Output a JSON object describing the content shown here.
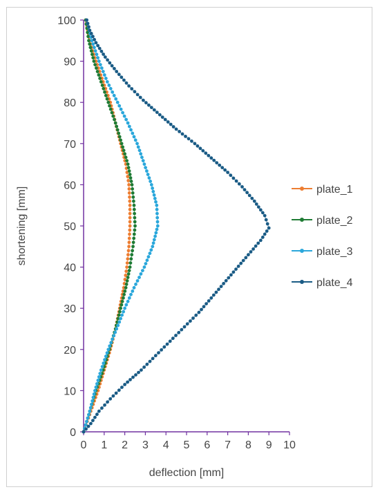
{
  "chart_data": {
    "type": "scatter",
    "xlabel": "deflection [mm]",
    "ylabel": "shortening [mm]",
    "xlim": [
      0,
      10
    ],
    "ylim": [
      0,
      100
    ],
    "xticks": [
      "0",
      "1",
      "2",
      "3",
      "4",
      "5",
      "6",
      "7",
      "8",
      "9",
      "10"
    ],
    "yticks": [
      "0",
      "10",
      "20",
      "30",
      "40",
      "50",
      "60",
      "70",
      "80",
      "90",
      "100"
    ],
    "grid": false,
    "legend_position": "right",
    "axis_color": "#7030A0",
    "series": [
      {
        "name": "plate_1",
        "color": "#ED7D31",
        "points": [
          [
            0,
            0
          ],
          [
            0.35,
            5
          ],
          [
            0.7,
            10
          ],
          [
            1.0,
            15
          ],
          [
            1.3,
            20
          ],
          [
            1.55,
            25
          ],
          [
            1.75,
            30
          ],
          [
            1.95,
            35
          ],
          [
            2.1,
            40
          ],
          [
            2.2,
            45
          ],
          [
            2.25,
            50
          ],
          [
            2.25,
            55
          ],
          [
            2.2,
            60
          ],
          [
            2.05,
            65
          ],
          [
            1.8,
            70
          ],
          [
            1.55,
            75
          ],
          [
            1.3,
            80
          ],
          [
            0.95,
            85
          ],
          [
            0.6,
            90
          ],
          [
            0.3,
            95
          ],
          [
            0.1,
            100
          ]
        ]
      },
      {
        "name": "plate_2",
        "color": "#1E7B34",
        "points": [
          [
            0,
            0
          ],
          [
            0.3,
            5
          ],
          [
            0.6,
            10
          ],
          [
            0.95,
            15
          ],
          [
            1.25,
            20
          ],
          [
            1.55,
            25
          ],
          [
            1.8,
            30
          ],
          [
            2.05,
            35
          ],
          [
            2.25,
            40
          ],
          [
            2.4,
            45
          ],
          [
            2.5,
            50
          ],
          [
            2.45,
            55
          ],
          [
            2.35,
            60
          ],
          [
            2.15,
            65
          ],
          [
            1.85,
            70
          ],
          [
            1.55,
            75
          ],
          [
            1.2,
            80
          ],
          [
            0.85,
            85
          ],
          [
            0.5,
            90
          ],
          [
            0.25,
            95
          ],
          [
            0.1,
            100
          ]
        ]
      },
      {
        "name": "plate_3",
        "color": "#2AA7DB",
        "points": [
          [
            0,
            0
          ],
          [
            0.3,
            5
          ],
          [
            0.55,
            10
          ],
          [
            0.85,
            15
          ],
          [
            1.2,
            20
          ],
          [
            1.6,
            25
          ],
          [
            2.0,
            30
          ],
          [
            2.45,
            35
          ],
          [
            2.95,
            40
          ],
          [
            3.35,
            45
          ],
          [
            3.6,
            50
          ],
          [
            3.55,
            55
          ],
          [
            3.3,
            60
          ],
          [
            2.95,
            65
          ],
          [
            2.6,
            70
          ],
          [
            2.15,
            75
          ],
          [
            1.65,
            80
          ],
          [
            1.15,
            85
          ],
          [
            0.75,
            90
          ],
          [
            0.4,
            95
          ],
          [
            0.15,
            100
          ]
        ]
      },
      {
        "name": "plate_4",
        "color": "#1A5B85",
        "points": [
          [
            0,
            0
          ],
          [
            0.35,
            2
          ],
          [
            0.75,
            5
          ],
          [
            1.3,
            8
          ],
          [
            2.0,
            11.5
          ],
          [
            2.8,
            15
          ],
          [
            3.5,
            18.5
          ],
          [
            4.2,
            22
          ],
          [
            4.9,
            25.5
          ],
          [
            5.6,
            29
          ],
          [
            6.2,
            32.5
          ],
          [
            6.8,
            36
          ],
          [
            7.4,
            39.5
          ],
          [
            8.0,
            43
          ],
          [
            8.6,
            46.5
          ],
          [
            9.0,
            49.5
          ],
          [
            8.8,
            52.5
          ],
          [
            8.3,
            56
          ],
          [
            7.7,
            59.5
          ],
          [
            7.0,
            63
          ],
          [
            6.2,
            66.5
          ],
          [
            5.4,
            70
          ],
          [
            4.5,
            73.5
          ],
          [
            3.7,
            77
          ],
          [
            2.9,
            80.5
          ],
          [
            2.2,
            84
          ],
          [
            1.6,
            87.5
          ],
          [
            1.05,
            91
          ],
          [
            0.6,
            94.5
          ],
          [
            0.3,
            97.5
          ],
          [
            0.15,
            100
          ]
        ]
      }
    ]
  }
}
